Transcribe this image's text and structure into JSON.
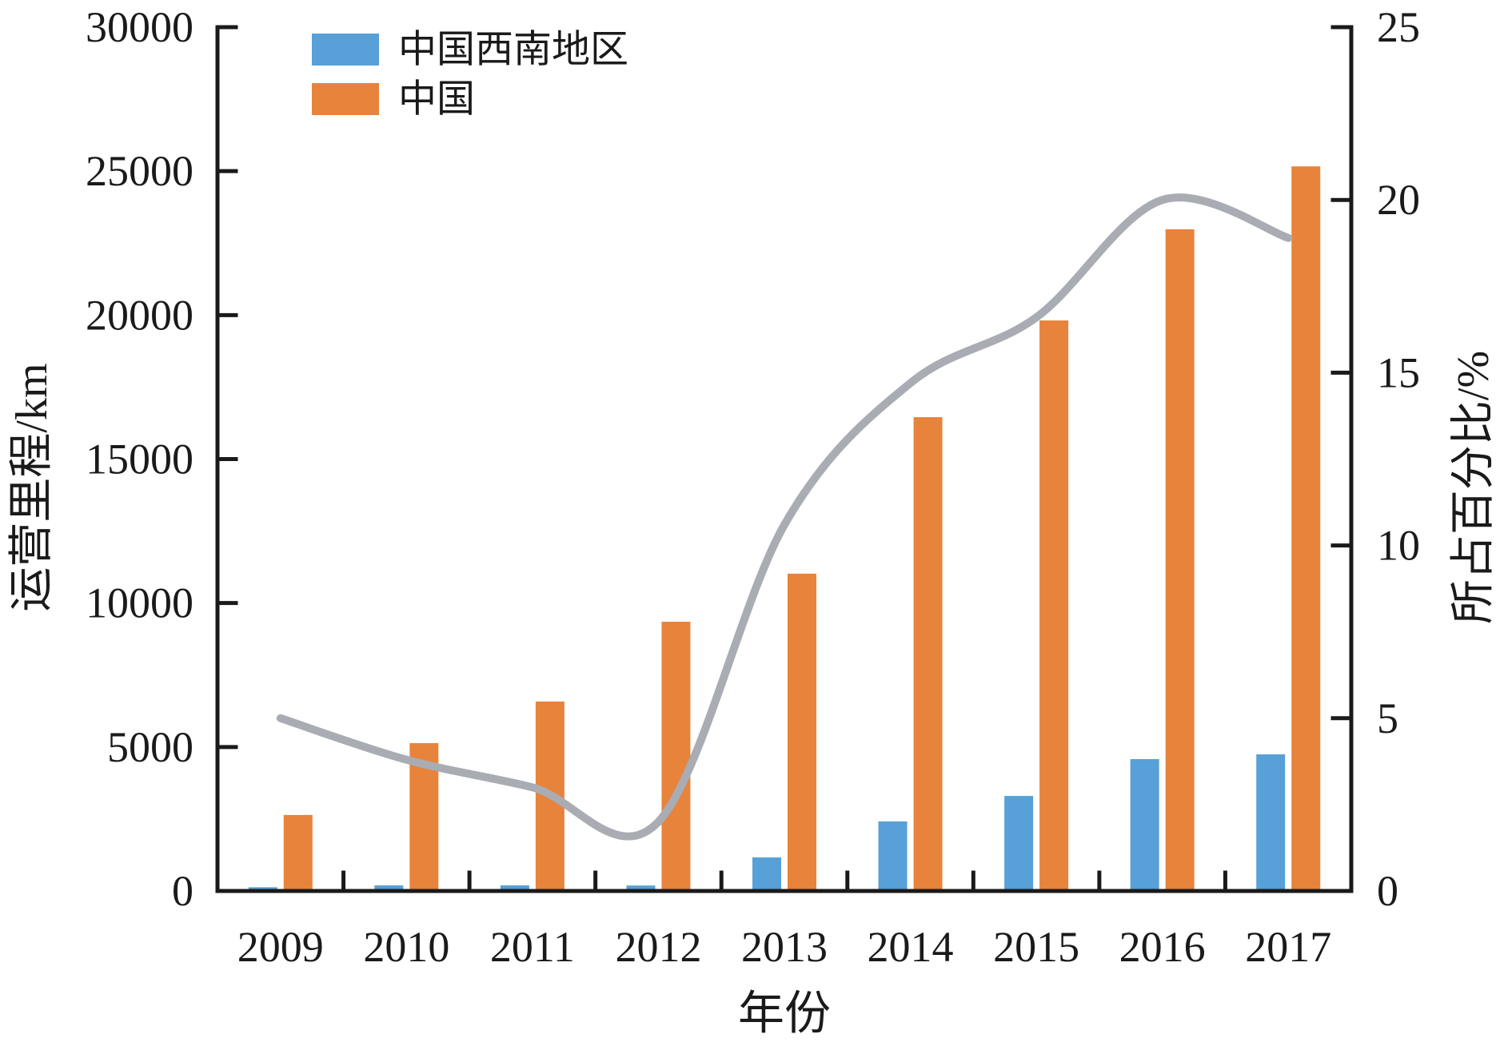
{
  "figure": {
    "background": "#ffffff",
    "axis_color": "#1a1a1a",
    "text_color": "#1a1a1a"
  },
  "chart_data": {
    "type": "combo",
    "categories": [
      "2009",
      "2010",
      "2011",
      "2012",
      "2013",
      "2014",
      "2015",
      "2016",
      "2017"
    ],
    "series": [
      {
        "name": "中国西南地区",
        "type": "bar",
        "axis": "left",
        "color": "#57a0d8",
        "values": [
          130,
          195,
          195,
          190,
          1165,
          2415,
          3300,
          4580,
          4745
        ]
      },
      {
        "name": "中国",
        "type": "bar",
        "axis": "left",
        "color": "#e8833c",
        "values": [
          2640,
          5135,
          6580,
          9350,
          11020,
          16455,
          19815,
          22980,
          25165
        ]
      },
      {
        "name": "所占百分比",
        "type": "line",
        "axis": "right",
        "color": "#a9acb3",
        "values": [
          5.0,
          3.8,
          3.0,
          2.0,
          10.6,
          14.7,
          16.6,
          20.0,
          18.9
        ]
      }
    ],
    "left_axis": {
      "label": "运营里程/km",
      "min": 0,
      "max": 30000,
      "tick_step": 5000,
      "ticks": [
        "0",
        "5000",
        "10000",
        "15000",
        "20000",
        "25000",
        "30000"
      ]
    },
    "right_axis": {
      "label": "所占百分比/%",
      "min": 0,
      "max": 25,
      "tick_step": 5,
      "ticks": [
        "0",
        "5",
        "10",
        "15",
        "20",
        "25"
      ]
    },
    "x_axis": {
      "label": "年份"
    },
    "legend": {
      "position": "inside-top-left",
      "items": [
        {
          "label": "中国西南地区",
          "color": "#57a0d8"
        },
        {
          "label": "中国",
          "color": "#e8833c"
        }
      ]
    },
    "grid": false
  }
}
